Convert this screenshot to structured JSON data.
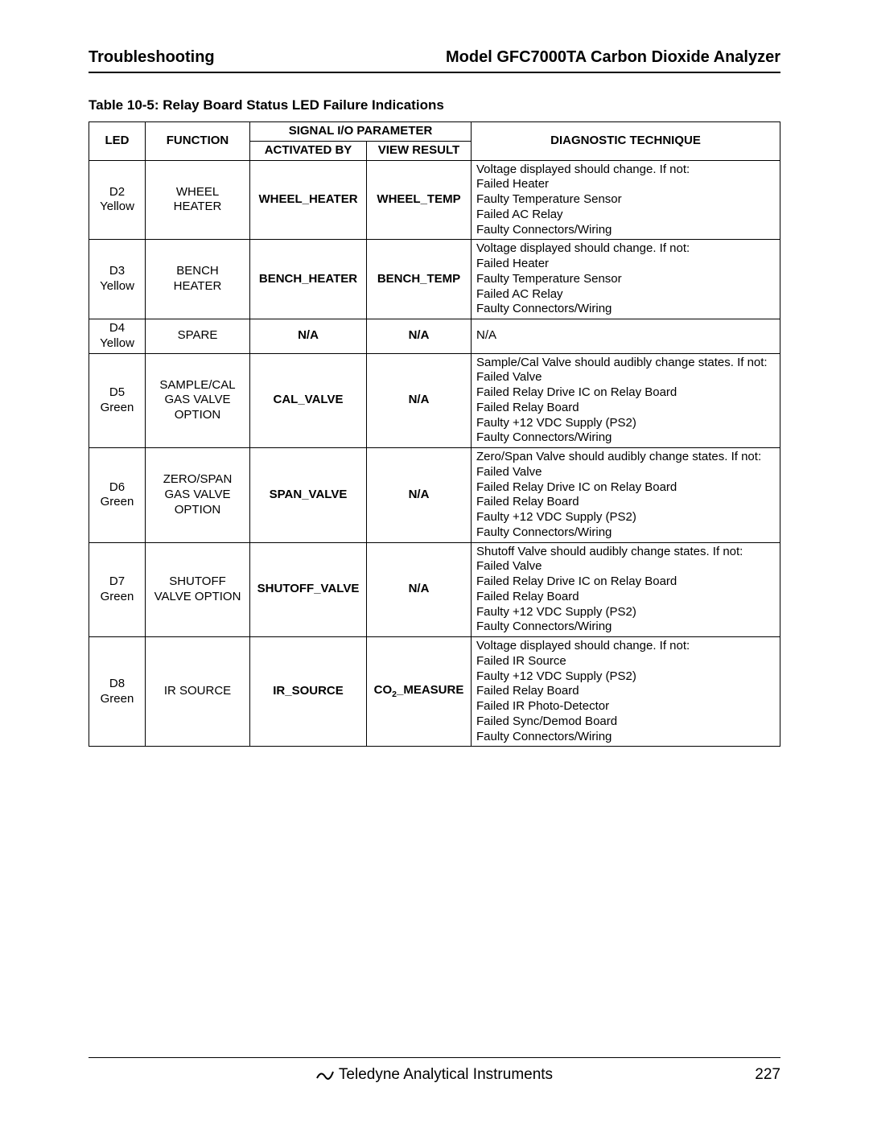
{
  "header": {
    "left": "Troubleshooting",
    "right": "Model GFC7000TA Carbon Dioxide Analyzer"
  },
  "caption": "Table 10-5:   Relay Board Status LED Failure Indications",
  "columns": {
    "led": "LED",
    "func": "FUNCTION",
    "signal_group": "SIGNAL I/O PARAMETER",
    "activated": "ACTIVATED BY",
    "view": "VIEW RESULT",
    "diag": "DIAGNOSTIC TECHNIQUE"
  },
  "rows": [
    {
      "led": "D2\nYellow",
      "func": "WHEEL\nHEATER",
      "activated": "WHEEL_HEATER",
      "view": "WHEEL_TEMP",
      "diag": "Voltage displayed should change.  If not:\nFailed Heater\nFaulty Temperature Sensor\nFailed AC Relay\nFaulty Connectors/Wiring"
    },
    {
      "led": "D3\nYellow",
      "func": "BENCH\nHEATER",
      "activated": "BENCH_HEATER",
      "view": "BENCH_TEMP",
      "diag": "Voltage displayed should change.  If not:\nFailed Heater\nFaulty Temperature Sensor\nFailed AC Relay\nFaulty Connectors/Wiring"
    },
    {
      "led": "D4\nYellow",
      "func": "SPARE",
      "activated": "N/A",
      "view": "N/A",
      "diag": "N/A"
    },
    {
      "led": "D5\nGreen",
      "func": "SAMPLE/CAL\nGAS VALVE\nOPTION",
      "activated": "CAL_VALVE",
      "view": "N/A",
      "diag": "Sample/Cal Valve should audibly change states.  If not:\nFailed Valve\nFailed Relay Drive IC on Relay Board\nFailed Relay Board\nFaulty +12 VDC Supply (PS2)\nFaulty Connectors/Wiring"
    },
    {
      "led": "D6\nGreen",
      "func": "ZERO/SPAN\nGAS VALVE\nOPTION",
      "activated": "SPAN_VALVE",
      "view": "N/A",
      "diag": "Zero/Span Valve should audibly change states.  If not:\nFailed Valve\nFailed Relay Drive IC on Relay Board\nFailed Relay Board\nFaulty +12 VDC Supply (PS2)\nFaulty Connectors/Wiring"
    },
    {
      "led": "D7\nGreen",
      "func": "SHUTOFF\nVALVE OPTION",
      "activated": "SHUTOFF_VALVE",
      "view": "N/A",
      "diag": "Shutoff Valve should audibly change states.  If not:\nFailed Valve\nFailed Relay Drive IC on Relay Board\nFailed Relay Board\nFaulty +12 VDC Supply (PS2)\nFaulty Connectors/Wiring"
    },
    {
      "led": "D8\nGreen",
      "func": "IR SOURCE",
      "activated": "IR_SOURCE",
      "view_html": "CO<sub>2</sub>_MEASURE",
      "diag": "Voltage displayed should change.  If not:\nFailed IR Source\nFaulty +12 VDC Supply (PS2)\nFailed Relay Board\nFailed IR Photo-Detector\nFailed Sync/Demod Board\nFaulty Connectors/Wiring"
    }
  ],
  "footer": {
    "company": "Teledyne Analytical Instruments",
    "page": "227"
  }
}
